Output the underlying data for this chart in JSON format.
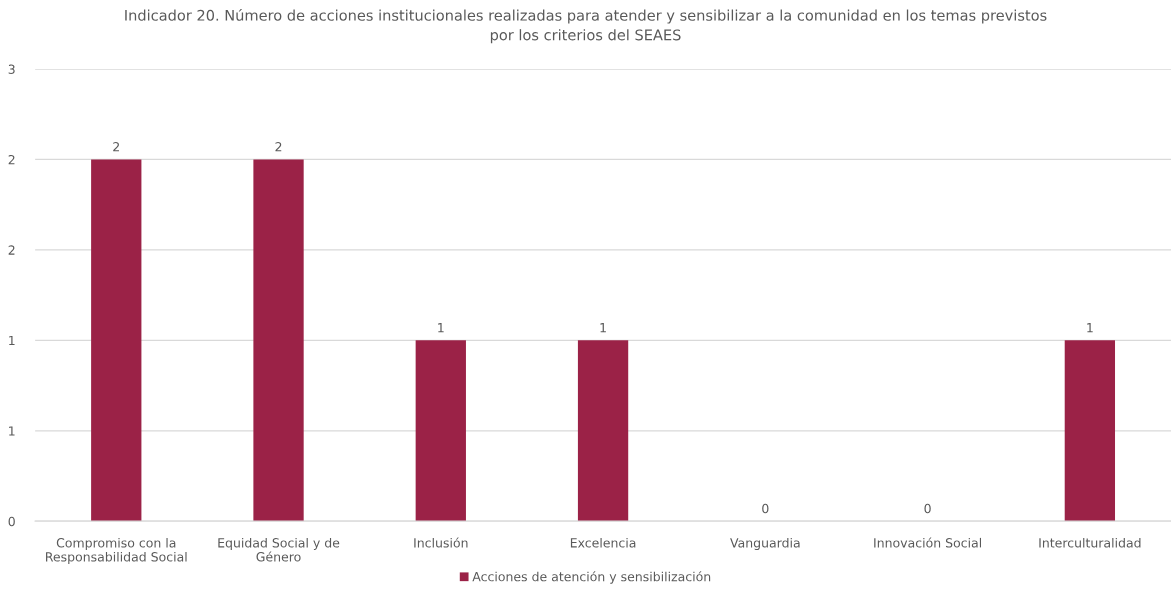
{
  "chart_data": {
    "type": "bar",
    "title": "Indicador 20. Número de acciones institucionales realizadas para atender y sensibilizar a la comunidad en los temas previstos\npor los criterios del SEAES",
    "categories": [
      "Compromiso con la\nResponsabilidad Social",
      "Equidad Social y de\nGénero",
      "Inclusión",
      "Excelencia",
      "Vanguardia",
      "Innovación Social",
      "Interculturalidad"
    ],
    "series": [
      {
        "name": "Acciones de atención y sensibilización",
        "color": "#9b2247",
        "values": [
          2,
          2,
          1,
          1,
          0,
          0,
          1
        ]
      }
    ],
    "ylim": [
      0,
      2.5
    ],
    "yticks": [
      0,
      {
        "value": 0.5,
        "label": "1"
      },
      1,
      {
        "value": 1.5,
        "label": "2"
      },
      2,
      {
        "value": 2.5,
        "label": "3"
      }
    ],
    "grid": "y",
    "legend": "bottom",
    "data_labels": true
  }
}
